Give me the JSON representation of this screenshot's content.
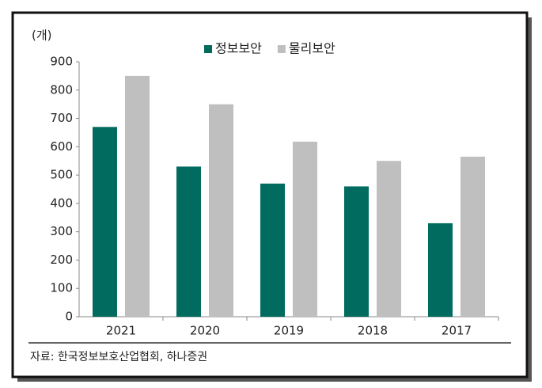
{
  "chart_data": {
    "type": "bar",
    "y_label": "(개)",
    "categories": [
      "2021",
      "2020",
      "2019",
      "2018",
      "2017"
    ],
    "series": [
      {
        "name": "정보보안",
        "color": "#006b5e",
        "values": [
          670,
          530,
          470,
          460,
          330
        ]
      },
      {
        "name": "물리보안",
        "color": "#bfbfbf",
        "values": [
          850,
          750,
          618,
          550,
          565
        ]
      }
    ],
    "ylim": [
      0,
      900
    ],
    "yticks": [
      0,
      100,
      200,
      300,
      400,
      500,
      600,
      700,
      800,
      900
    ],
    "grid": false,
    "legend": "top",
    "source": "자료: 한국정보보호산업협회, 하나증권"
  }
}
